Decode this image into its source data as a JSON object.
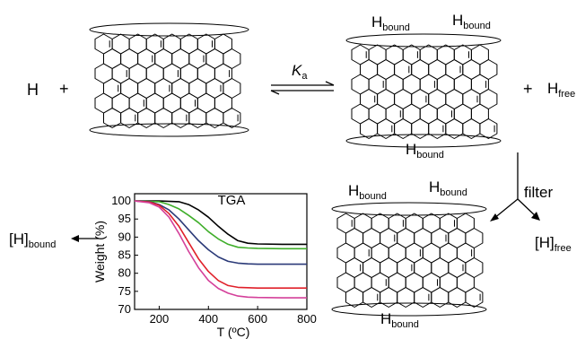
{
  "scheme": {
    "host_free_label": "H",
    "plus_left": "+",
    "plus_right": "+",
    "equilibrium_constant": {
      "symbol": "K",
      "subscript": "a"
    },
    "H": "H",
    "bound_sub": "bound",
    "free_sub": "free",
    "filter_label": "filter",
    "bracket_bound": {
      "main": "[H]",
      "sub": "bound"
    },
    "bracket_free": {
      "main": "[H]",
      "sub": "free"
    }
  },
  "colors": {
    "black": "#000000",
    "green": "#3fae2a",
    "navy": "#2b3a78",
    "red": "#e0202a",
    "magenta": "#d4409a"
  },
  "chart_data": {
    "type": "line",
    "title": "TGA",
    "xlabel": "T (ºC)",
    "ylabel": "Weight  (%)",
    "xlim": [
      100,
      800
    ],
    "ylim": [
      70,
      102
    ],
    "xticks": [
      200,
      400,
      600,
      800
    ],
    "yticks": [
      70,
      75,
      80,
      85,
      90,
      95,
      100
    ],
    "series": [
      {
        "color": "#000000",
        "x": [
          100,
          200,
          280,
          320,
          360,
          400,
          440,
          480,
          520,
          560,
          600,
          700,
          800
        ],
        "y": [
          100,
          100,
          99.8,
          99,
          97.5,
          95.5,
          93,
          90.8,
          89,
          88.3,
          88.1,
          88,
          88
        ]
      },
      {
        "color": "#3fae2a",
        "x": [
          100,
          200,
          240,
          280,
          320,
          360,
          400,
          440,
          480,
          520,
          560,
          600,
          700,
          800
        ],
        "y": [
          100,
          99.8,
          99,
          97.8,
          96,
          94,
          91.5,
          89.5,
          88,
          87.2,
          87,
          86.9,
          86.8,
          86.8
        ]
      },
      {
        "color": "#2b3a78",
        "x": [
          100,
          160,
          200,
          240,
          280,
          320,
          360,
          400,
          440,
          480,
          520,
          560,
          600,
          700,
          800
        ],
        "y": [
          100,
          99.8,
          99,
          97.5,
          95,
          92,
          89,
          86.5,
          84.5,
          83.3,
          82.8,
          82.6,
          82.5,
          82.5,
          82.5
        ]
      },
      {
        "color": "#e0202a",
        "x": [
          100,
          160,
          200,
          240,
          280,
          320,
          360,
          400,
          440,
          480,
          520,
          560,
          600,
          700,
          800
        ],
        "y": [
          100,
          99.7,
          98.8,
          96.5,
          93,
          88.5,
          84,
          80.5,
          78,
          76.6,
          76.1,
          76,
          75.9,
          75.9,
          75.9
        ]
      },
      {
        "color": "#d4409a",
        "x": [
          100,
          160,
          200,
          240,
          280,
          320,
          360,
          400,
          440,
          480,
          520,
          560,
          600,
          700,
          800
        ],
        "y": [
          100,
          99.5,
          98.3,
          95.5,
          91,
          86,
          81.5,
          78,
          75.8,
          74.5,
          73.7,
          73.4,
          73.3,
          73.2,
          73.2
        ]
      }
    ]
  }
}
